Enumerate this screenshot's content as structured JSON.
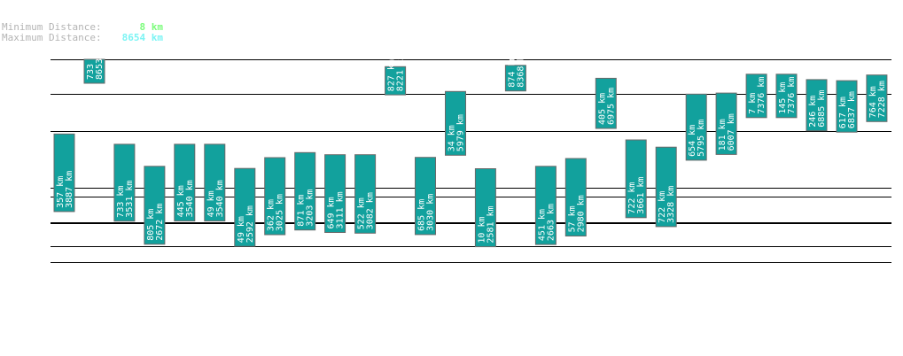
{
  "summary": {
    "min_label": "Minimum Distance:",
    "min_value": "8 km",
    "max_label": "Maximum Distance:",
    "max_value": "8654 km",
    "min_color": "#7cfc7c",
    "max_color": "#7cf4f4"
  },
  "chart_data": {
    "type": "bar",
    "orientation": "vertical-floating",
    "bar_color": "#12a19d",
    "reference_lines": [
      8654,
      7376,
      5979,
      3887,
      3540,
      2592,
      2581,
      2561,
      1719,
      1116
    ],
    "bars": [
      {
        "top": 5880,
        "bottom": 3887,
        "label_a": "357 km",
        "label_b": "3887 km"
      },
      {
        "top": 8654,
        "bottom": 8653,
        "label_a": "733 km",
        "label_b": "8653 km"
      },
      {
        "top": 5500,
        "bottom": 3531,
        "label_a": "733 km",
        "label_b": "3531 km"
      },
      {
        "top": 4680,
        "bottom": 2672,
        "label_a": "805 km",
        "label_b": "2672 km"
      },
      {
        "top": 5500,
        "bottom": 3540,
        "label_a": "445 km",
        "label_b": "3540 km"
      },
      {
        "top": 5500,
        "bottom": 3540,
        "label_a": "49 km",
        "label_b": "3540 km"
      },
      {
        "top": 4600,
        "bottom": 2592,
        "label_a": "49 km",
        "label_b": "2592 km"
      },
      {
        "top": 5000,
        "bottom": 3025,
        "label_a": "362 km",
        "label_b": "3025 km"
      },
      {
        "top": 5190,
        "bottom": 3203,
        "label_a": "871 km",
        "label_b": "3203 km"
      },
      {
        "top": 5110,
        "bottom": 3111,
        "label_a": "649 km",
        "label_b": "3111 km"
      },
      {
        "top": 5110,
        "bottom": 3082,
        "label_a": "522 km",
        "label_b": "3082 km"
      },
      {
        "top": 8380,
        "bottom": 8221,
        "label_a": "827 km",
        "label_b": "8221 km"
      },
      {
        "top": 5010,
        "bottom": 3030,
        "label_a": "685 km",
        "label_b": "3030 km"
      },
      {
        "top": 7460,
        "bottom": 5979,
        "label_a": "34 km",
        "label_b": "5979 km"
      },
      {
        "top": 4590,
        "bottom": 2581,
        "label_a": "10 km",
        "label_b": "2581 km"
      },
      {
        "top": 8430,
        "bottom": 8368,
        "label_a": "874 km",
        "label_b": "8368 km"
      },
      {
        "top": 4680,
        "bottom": 2663,
        "label_a": "451 km",
        "label_b": "2663 km"
      },
      {
        "top": 4970,
        "bottom": 2980,
        "label_a": "57 km",
        "label_b": "2980 km"
      },
      {
        "top": 7950,
        "bottom": 6975,
        "label_a": "405 km",
        "label_b": "6975 km"
      },
      {
        "top": 5660,
        "bottom": 3661,
        "label_a": "722 km",
        "label_b": "3661 km"
      },
      {
        "top": 5390,
        "bottom": 3328,
        "label_a": "722 km",
        "label_b": "3328 km"
      },
      {
        "top": 7360,
        "bottom": 5795,
        "label_a": "654 km",
        "label_b": "5795 km"
      },
      {
        "top": 7400,
        "bottom": 6007,
        "label_a": "181 km",
        "label_b": "6007 km"
      },
      {
        "top": 8100,
        "bottom": 7376,
        "label_a": "7 km",
        "label_b": "7376 km"
      },
      {
        "top": 8100,
        "bottom": 7376,
        "label_a": "145 km",
        "label_b": "7376 km"
      },
      {
        "top": 7900,
        "bottom": 6885,
        "label_a": "246 km",
        "label_b": "6885 km"
      },
      {
        "top": 7860,
        "bottom": 6837,
        "label_a": "617 km",
        "label_b": "6837 km"
      },
      {
        "top": 8070,
        "bottom": 7228,
        "label_a": "764 km",
        "label_b": "7228 km"
      }
    ]
  }
}
